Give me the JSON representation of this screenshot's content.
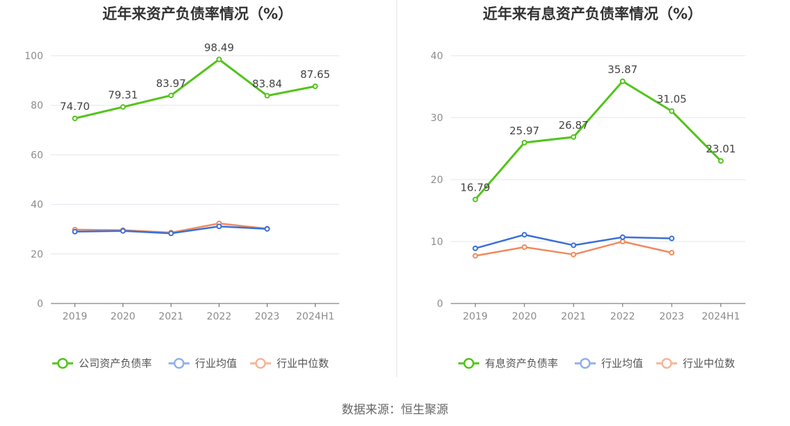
{
  "source": "数据来源：恒生聚源",
  "chart_data": [
    {
      "type": "line",
      "title": "近年来资产负债率情况（%）",
      "categories": [
        "2019",
        "2020",
        "2021",
        "2022",
        "2023",
        "2024H1"
      ],
      "yticks": [
        "0",
        "20",
        "40",
        "60",
        "80",
        "100"
      ],
      "ylim": [
        0,
        100
      ],
      "grid": true,
      "legend_position": "bottom",
      "series": [
        {
          "name": "公司资产负债率",
          "color": "#52c41a",
          "values": [
            74.7,
            79.31,
            83.97,
            98.49,
            83.84,
            87.65
          ],
          "labels": [
            "74.70",
            "79.31",
            "83.97",
            "98.49",
            "83.84",
            "87.65"
          ]
        },
        {
          "name": "行业均值",
          "color": "#3a6fd8",
          "values": [
            29.0,
            29.3,
            28.3,
            31.1,
            30.1,
            null
          ]
        },
        {
          "name": "行业中位数",
          "color": "#f08a5d",
          "values": [
            29.8,
            29.6,
            28.6,
            32.3,
            30.2,
            null
          ]
        }
      ]
    },
    {
      "type": "line",
      "title": "近年来有息资产负债率情况（%）",
      "categories": [
        "2019",
        "2020",
        "2021",
        "2022",
        "2023",
        "2024H1"
      ],
      "yticks": [
        "0",
        "10",
        "20",
        "30",
        "40"
      ],
      "ylim": [
        0,
        40
      ],
      "grid": true,
      "legend_position": "bottom",
      "series": [
        {
          "name": "有息资产负债率",
          "color": "#52c41a",
          "values": [
            16.79,
            25.97,
            26.87,
            35.87,
            31.05,
            23.01
          ],
          "labels": [
            "16.79",
            "25.97",
            "26.87",
            "35.87",
            "31.05",
            "23.01"
          ]
        },
        {
          "name": "行业均值",
          "color": "#3a6fd8",
          "values": [
            8.9,
            11.1,
            9.4,
            10.7,
            10.5,
            null
          ]
        },
        {
          "name": "行业中位数",
          "color": "#f08a5d",
          "values": [
            7.7,
            9.1,
            7.9,
            10.0,
            8.2,
            null
          ]
        }
      ]
    }
  ]
}
